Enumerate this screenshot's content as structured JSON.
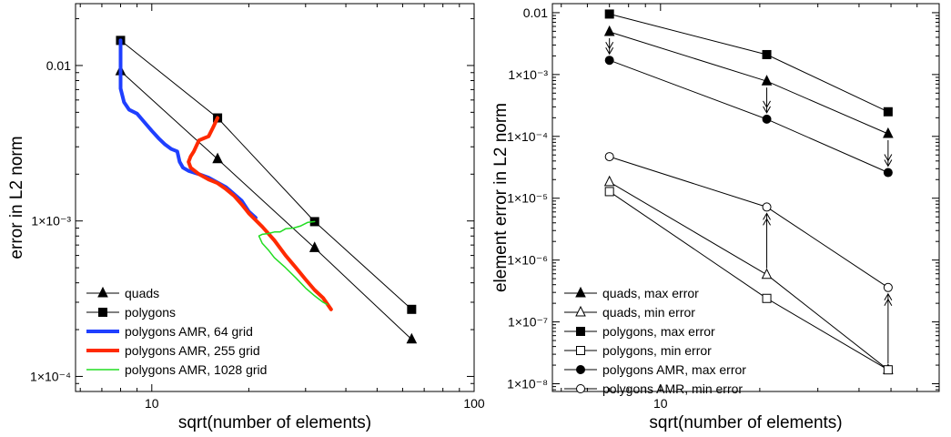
{
  "chart_data": [
    {
      "type": "line",
      "xlabel": "sqrt(number of elements)",
      "ylabel": "error in L2 norm",
      "xscale": "log",
      "yscale": "log",
      "xlim": [
        5.8,
        100
      ],
      "ylim": [
        8e-05,
        0.025
      ],
      "x_ticks": [
        {
          "v": 10,
          "label": "10"
        },
        {
          "v": 100,
          "label": "100"
        }
      ],
      "y_ticks": [
        {
          "v": 0.0001,
          "label": "1×10⁻⁴"
        },
        {
          "v": 0.001,
          "label": "1×10⁻³"
        },
        {
          "v": 0.01,
          "label": "0.01"
        }
      ],
      "grid": false,
      "legend_position": "bottom-left",
      "series": [
        {
          "name": "quads",
          "marker": "triangle-filled",
          "color": "#000000",
          "x": [
            8,
            16,
            32,
            64
          ],
          "y": [
            0.0092,
            0.0025,
            0.00067,
            0.000173
          ]
        },
        {
          "name": "polygons",
          "marker": "square-filled",
          "color": "#000000",
          "x": [
            8,
            16,
            32,
            64
          ],
          "y": [
            0.0145,
            0.0046,
            0.00099,
            0.00027
          ]
        },
        {
          "name": "polygons AMR, 64 grid",
          "marker": "none",
          "color": "#1f3fff",
          "line_width": 4,
          "x": [
            8,
            8.0,
            8.2,
            8.5,
            9.0,
            9.5,
            10.0,
            10.5,
            11.0,
            11.5,
            12.0,
            12.2,
            12.5,
            13.0,
            14.0,
            15.0,
            17.0,
            19.0,
            20.0,
            21.0
          ],
          "y": [
            0.0145,
            0.0071,
            0.0058,
            0.0052,
            0.0049,
            0.0043,
            0.0038,
            0.0034,
            0.0031,
            0.0029,
            0.0028,
            0.0024,
            0.0022,
            0.0021,
            0.002,
            0.0019,
            0.00165,
            0.00135,
            0.00115,
            0.00105
          ]
        },
        {
          "name": "polygons AMR, 255 grid",
          "marker": "none",
          "color": "#ff2a00",
          "line_width": 4,
          "x": [
            16,
            15.5,
            15,
            14.5,
            14.0,
            13.5,
            13.2,
            13.0,
            13.2,
            14.0,
            15.0,
            16.0,
            17.0,
            18.0,
            19.0,
            20.0,
            22.0,
            24.0,
            26.0,
            28.0,
            30.0,
            32.0,
            34.0,
            36.0
          ],
          "y": [
            0.0046,
            0.004,
            0.0035,
            0.0034,
            0.0033,
            0.0028,
            0.0026,
            0.0024,
            0.0022,
            0.002,
            0.00185,
            0.00175,
            0.0016,
            0.00145,
            0.00128,
            0.00112,
            0.00092,
            0.00075,
            0.0006,
            0.0005,
            0.00042,
            0.00036,
            0.00032,
            0.00027
          ]
        },
        {
          "name": "polygons AMR, 1028 grid",
          "marker": "none",
          "color": "#22dd22",
          "line_width": 1.5,
          "x": [
            32,
            30.5,
            29.0,
            27.5,
            26.0,
            25.0,
            24.0,
            23.0,
            22.0,
            21.5,
            22.0,
            23.0,
            24.0,
            26.0,
            28.0,
            30.0,
            32.0,
            34.0,
            35.0
          ],
          "y": [
            0.00099,
            0.00098,
            0.00093,
            0.0009,
            0.00089,
            0.00085,
            0.00085,
            0.00083,
            0.00082,
            0.0008,
            0.00072,
            0.00065,
            0.00058,
            0.0005,
            0.00043,
            0.00037,
            0.00033,
            0.0003,
            0.00029
          ]
        }
      ]
    },
    {
      "type": "line",
      "xlabel": "sqrt(number of elements)",
      "ylabel": "element error in L2 norm",
      "xscale": "log",
      "yscale": "log",
      "xlim": [
        4.7,
        70
      ],
      "ylim": [
        7.5e-09,
        0.014
      ],
      "x_ticks": [
        {
          "v": 10,
          "label": "10"
        }
      ],
      "y_ticks": [
        {
          "v": 1e-08,
          "label": "1×10⁻⁸"
        },
        {
          "v": 1e-07,
          "label": "1×10⁻⁷"
        },
        {
          "v": 1e-06,
          "label": "1×10⁻⁶"
        },
        {
          "v": 1e-05,
          "label": "1×10⁻⁵"
        },
        {
          "v": 0.0001,
          "label": "1×10⁻⁴"
        },
        {
          "v": 0.001,
          "label": "1×10⁻³"
        },
        {
          "v": 0.01,
          "label": "0.01"
        }
      ],
      "grid": false,
      "legend_position": "bottom-left",
      "series": [
        {
          "name": "quads, max error",
          "marker": "triangle-filled",
          "color": "#000000",
          "x": [
            7,
            21,
            49
          ],
          "y": [
            0.0049,
            0.00078,
            0.00011
          ]
        },
        {
          "name": "quads, min error",
          "marker": "triangle-open",
          "color": "#000000",
          "x": [
            7,
            21,
            49
          ],
          "y": [
            1.83e-05,
            5.8e-07,
            1.68e-08
          ]
        },
        {
          "name": "polygons, max error",
          "marker": "square-filled",
          "color": "#000000",
          "x": [
            7,
            21,
            49
          ],
          "y": [
            0.0095,
            0.0021,
            0.00025
          ]
        },
        {
          "name": "polygons, min error",
          "marker": "square-open",
          "color": "#000000",
          "x": [
            7,
            21,
            49
          ],
          "y": [
            1.28e-05,
            2.4e-07,
            1.68e-08
          ]
        },
        {
          "name": "polygons AMR, max error",
          "marker": "circle-filled",
          "color": "#000000",
          "x": [
            7,
            21,
            49
          ],
          "y": [
            0.0017,
            0.00019,
            2.6e-05
          ]
        },
        {
          "name": "polygons AMR, min error",
          "marker": "circle-open",
          "color": "#000000",
          "x": [
            7,
            21,
            49
          ],
          "y": [
            4.7e-05,
            7.2e-06,
            3.6e-07
          ]
        }
      ],
      "annotations": [
        {
          "type": "double-arrow",
          "x": 7,
          "y_from": 0.0049,
          "y_to": 0.0017
        },
        {
          "type": "double-arrow",
          "x": 21,
          "y_from": 0.00078,
          "y_to": 0.00019
        },
        {
          "type": "double-arrow",
          "x": 49,
          "y_from": 0.00011,
          "y_to": 2.6e-05
        },
        {
          "type": "double-arrow",
          "x": 21,
          "y_from": 5.8e-07,
          "y_to": 7.2e-06
        },
        {
          "type": "double-arrow",
          "x": 49,
          "y_from": 1.68e-08,
          "y_to": 3.6e-07
        }
      ]
    }
  ]
}
